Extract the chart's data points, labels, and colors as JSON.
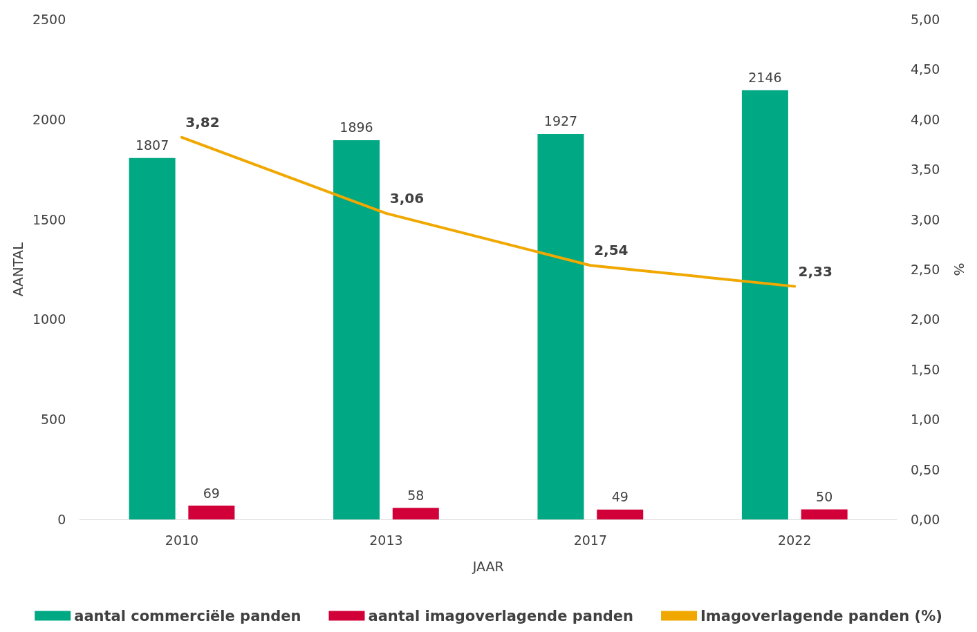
{
  "chart_data": {
    "type": "bar",
    "xlabel": "JAAR",
    "ylabel": "AANTAL",
    "y2label": "%",
    "categories": [
      "2010",
      "2013",
      "2017",
      "2022"
    ],
    "series": [
      {
        "name": "aantal commerciële panden",
        "color": "#00a884",
        "values": [
          1807,
          1896,
          1927,
          2146
        ],
        "value_labels": [
          "1807",
          "1896",
          "1927",
          "2146"
        ]
      },
      {
        "name": "aantal imagoverlagende panden",
        "color": "#d20038",
        "values": [
          69,
          58,
          49,
          50
        ],
        "value_labels": [
          "69",
          "58",
          "49",
          "50"
        ]
      },
      {
        "name": "Imagoverlagende panden (%)",
        "type": "line",
        "axis": "y2",
        "color": "#f0a800",
        "values": [
          3.82,
          3.06,
          2.54,
          2.33
        ],
        "value_labels": [
          "3,82",
          "3,06",
          "2,54",
          "2,33"
        ]
      }
    ],
    "ylim": [
      0,
      2500
    ],
    "yticks": [
      0,
      500,
      1000,
      1500,
      2000,
      2500
    ],
    "y2lim": [
      0,
      5
    ],
    "y2ticks": [
      {
        "value": 0,
        "label": "0,00"
      },
      {
        "value": 0.5,
        "label": "0,50"
      },
      {
        "value": 1,
        "label": "1,00"
      },
      {
        "value": 1.5,
        "label": "1,50"
      },
      {
        "value": 2,
        "label": "2,00"
      },
      {
        "value": 2.5,
        "label": "2,50"
      },
      {
        "value": 3,
        "label": "3,00"
      },
      {
        "value": 3.5,
        "label": "3,50"
      },
      {
        "value": 4,
        "label": "4,00"
      },
      {
        "value": 4.5,
        "label": "4,50"
      },
      {
        "value": 5,
        "label": "5,00"
      }
    ],
    "grid": false,
    "legend": "bottom",
    "marker": "none",
    "line_style": "solid"
  }
}
